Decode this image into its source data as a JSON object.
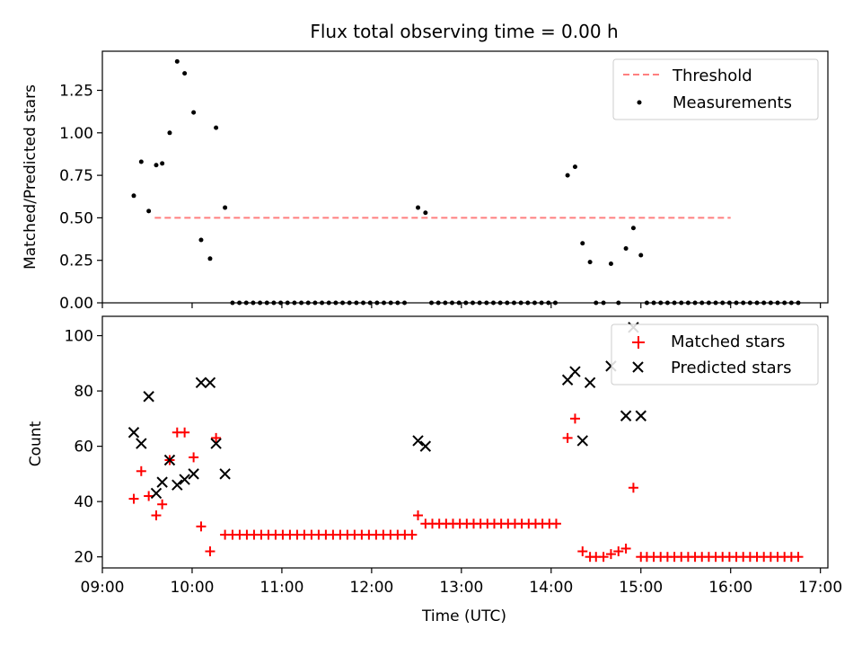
{
  "title": "Flux total observing time = 0.00 h",
  "chart_data": [
    {
      "type": "scatter",
      "ylabel": "Matched/Predicted stars",
      "xlim": [
        "09:00",
        "17:05"
      ],
      "ylim": [
        0,
        1.48
      ],
      "yticks": [
        "0.00",
        "0.25",
        "0.50",
        "0.75",
        "1.00",
        "1.25"
      ],
      "threshold": {
        "name": "Threshold",
        "value": 0.5,
        "x_start": "09:35",
        "x_end": "16:00",
        "color": "#ff7f7f"
      },
      "measurements": {
        "name": "Measurements",
        "points": [
          [
            "09:21",
            0.63
          ],
          [
            "09:26",
            0.83
          ],
          [
            "09:31",
            0.54
          ],
          [
            "09:36",
            0.81
          ],
          [
            "09:40",
            0.82
          ],
          [
            "09:45",
            1.0
          ],
          [
            "09:50",
            1.42
          ],
          [
            "09:55",
            1.35
          ],
          [
            "10:01",
            1.12
          ],
          [
            "10:06",
            0.37
          ],
          [
            "10:12",
            0.26
          ],
          [
            "10:16",
            1.03
          ],
          [
            "10:22",
            0.56
          ],
          [
            "12:31",
            0.56
          ],
          [
            "12:36",
            0.53
          ],
          [
            "14:11",
            0.75
          ],
          [
            "14:16",
            0.8
          ],
          [
            "14:21",
            0.35
          ],
          [
            "14:26",
            0.24
          ],
          [
            "14:40",
            0.23
          ],
          [
            "14:50",
            0.32
          ],
          [
            "14:55",
            0.44
          ],
          [
            "15:00",
            0.28
          ]
        ],
        "zero_runs": [
          {
            "start": "10:27",
            "end": "12:22",
            "step_min": 4.6
          },
          {
            "start": "12:40",
            "end": "14:05",
            "step_min": 4.6
          },
          {
            "start": "14:30",
            "end": "14:35",
            "step_min": 5
          },
          {
            "start": "14:45",
            "end": "14:45",
            "step_min": 5
          },
          {
            "start": "15:04",
            "end": "16:48",
            "step_min": 4.6
          }
        ]
      }
    },
    {
      "type": "scatter",
      "xlabel": "Time (UTC)",
      "ylabel": "Count",
      "xlim": [
        "09:00",
        "17:05"
      ],
      "ylim": [
        16,
        107
      ],
      "yticks": [
        "20",
        "40",
        "60",
        "80",
        "100"
      ],
      "xticks": [
        "09:00",
        "10:00",
        "11:00",
        "12:00",
        "13:00",
        "14:00",
        "15:00",
        "16:00",
        "17:00"
      ],
      "series": [
        {
          "name": "Matched stars",
          "color": "#ff0000",
          "marker": "plus",
          "points": [
            [
              "09:21",
              41
            ],
            [
              "09:26",
              51
            ],
            [
              "09:31",
              42
            ],
            [
              "09:36",
              35
            ],
            [
              "09:40",
              39
            ],
            [
              "09:45",
              55
            ],
            [
              "09:50",
              65
            ],
            [
              "09:55",
              65
            ],
            [
              "10:01",
              56
            ],
            [
              "10:06",
              31
            ],
            [
              "10:12",
              22
            ],
            [
              "10:16",
              63
            ],
            [
              "10:22",
              28
            ],
            [
              "12:31",
              35
            ],
            [
              "14:11",
              63
            ],
            [
              "14:16",
              70
            ],
            [
              "14:21",
              22
            ],
            [
              "14:26",
              20
            ],
            [
              "14:40",
              21
            ],
            [
              "14:50",
              23
            ],
            [
              "14:55",
              45
            ],
            [
              "15:00",
              20
            ]
          ],
          "runs": [
            {
              "start": "10:27",
              "end": "12:27",
              "step_min": 4.8,
              "value": 28
            },
            {
              "start": "12:36",
              "end": "14:05",
              "step_min": 4.6,
              "value": 32
            },
            {
              "start": "14:30",
              "end": "14:35",
              "step_min": 5,
              "value": 20
            },
            {
              "start": "14:45",
              "end": "14:45",
              "step_min": 5,
              "value": 22
            },
            {
              "start": "15:04",
              "end": "16:48",
              "step_min": 4.6,
              "value": 20
            }
          ]
        },
        {
          "name": "Predicted stars",
          "color": "#000000",
          "marker": "x",
          "points": [
            [
              "09:21",
              65
            ],
            [
              "09:26",
              61
            ],
            [
              "09:31",
              78
            ],
            [
              "09:36",
              43
            ],
            [
              "09:40",
              47
            ],
            [
              "09:45",
              55
            ],
            [
              "09:50",
              46
            ],
            [
              "09:55",
              48
            ],
            [
              "10:01",
              50
            ],
            [
              "10:06",
              83
            ],
            [
              "10:12",
              83
            ],
            [
              "10:16",
              61
            ],
            [
              "10:22",
              50
            ],
            [
              "12:31",
              62
            ],
            [
              "12:36",
              60
            ],
            [
              "14:11",
              84
            ],
            [
              "14:16",
              87
            ],
            [
              "14:21",
              62
            ],
            [
              "14:26",
              83
            ],
            [
              "14:40",
              89
            ],
            [
              "14:50",
              71
            ],
            [
              "14:55",
              103
            ],
            [
              "15:00",
              71
            ]
          ]
        }
      ]
    }
  ]
}
